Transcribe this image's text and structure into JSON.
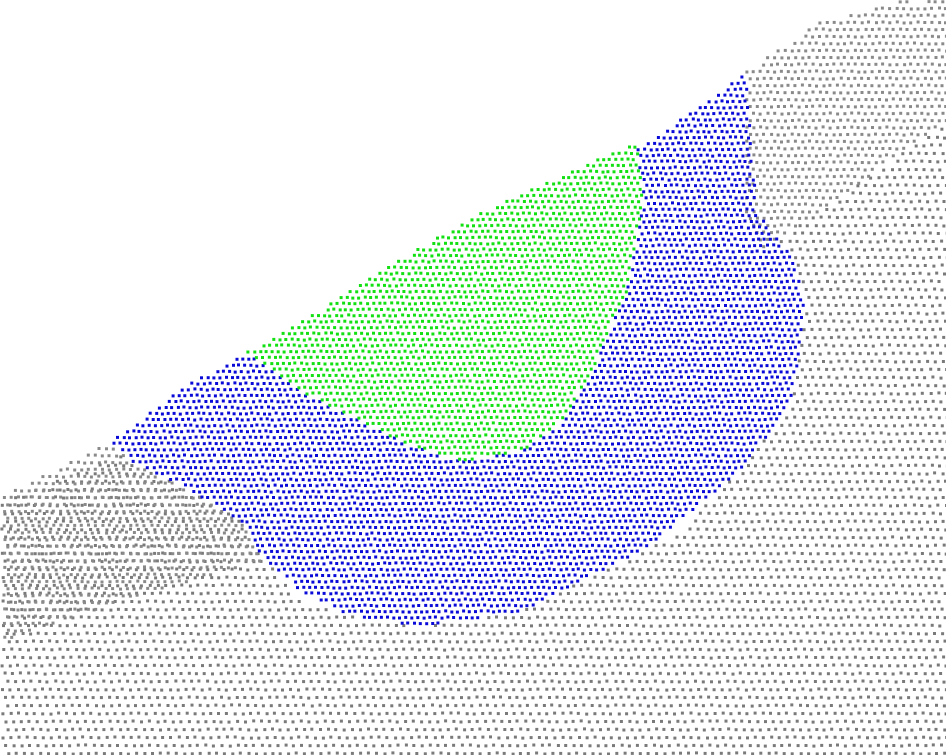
{
  "scene": {
    "kind": "point-cloud-render",
    "background_color": "#ffffff",
    "regions": [
      {
        "id": "ground",
        "label": "",
        "color": "#7a7a7a"
      },
      {
        "id": "wall",
        "label": "",
        "color": "#8a8a8a"
      },
      {
        "id": "outer-band",
        "label": "",
        "color": "#0a0ad8"
      },
      {
        "id": "inner-core",
        "label": "",
        "color": "#12e012"
      }
    ]
  }
}
